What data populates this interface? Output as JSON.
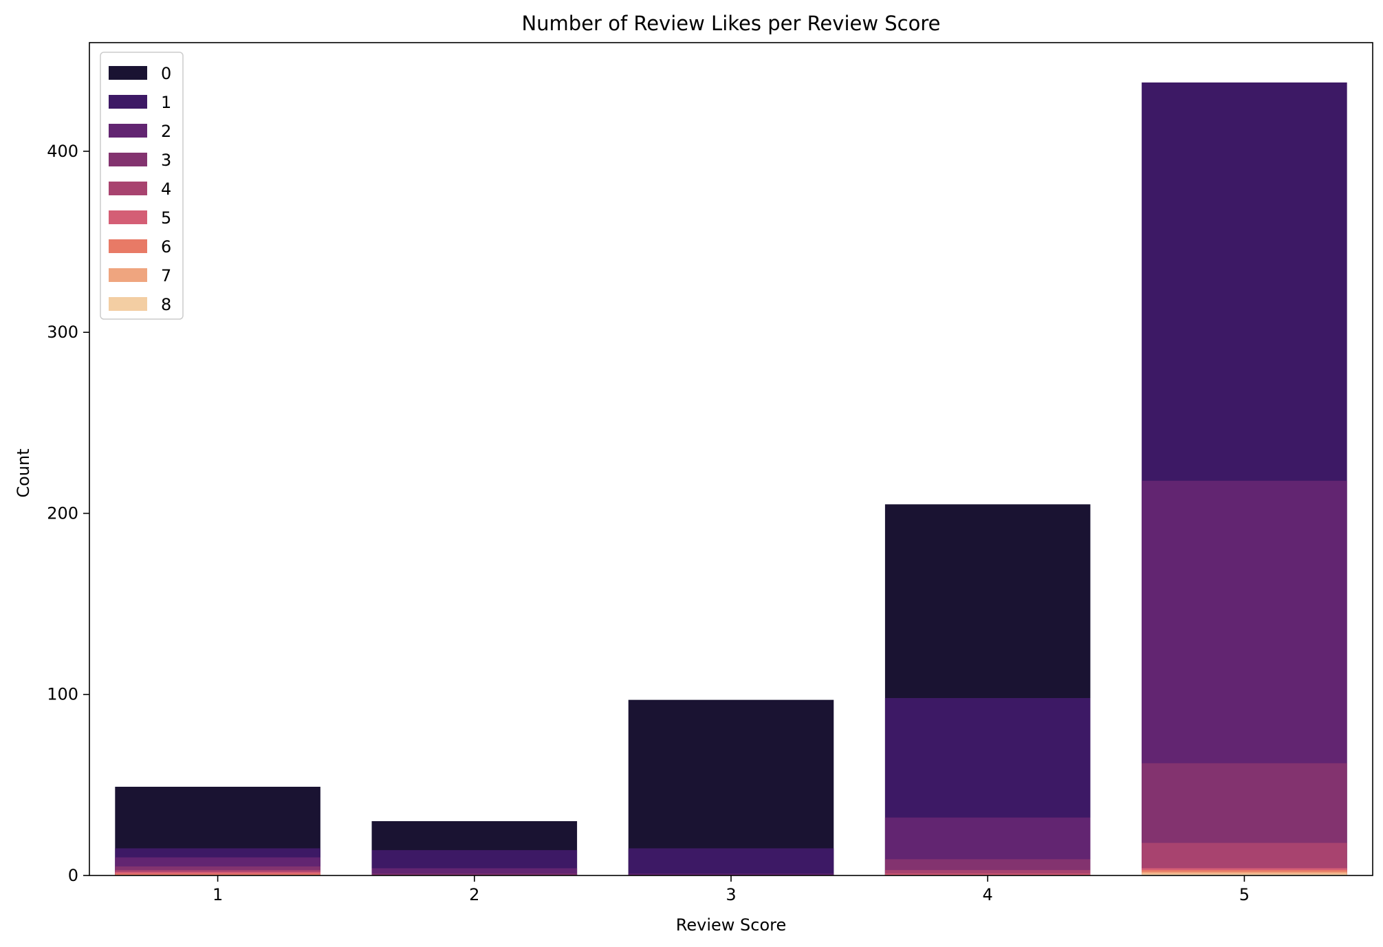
{
  "chart_data": {
    "type": "bar",
    "title": "Number of Review Likes per Review Score",
    "xlabel": "Review Score",
    "ylabel": "Count",
    "categories": [
      "1",
      "2",
      "3",
      "4",
      "5"
    ],
    "ylim": [
      0,
      460
    ],
    "yticks": [
      0,
      100,
      200,
      300,
      400
    ],
    "legend_position": "top-left",
    "grid": false,
    "overlaid": true,
    "series": [
      {
        "name": "0",
        "color": "#1a1332",
        "values": [
          49,
          30,
          97,
          205,
          0
        ]
      },
      {
        "name": "1",
        "color": "#3d1965",
        "values": [
          15,
          14,
          15,
          98,
          438
        ]
      },
      {
        "name": "2",
        "color": "#622571",
        "values": [
          10,
          4,
          1,
          32,
          218
        ]
      },
      {
        "name": "3",
        "color": "#83336f",
        "values": [
          5,
          1,
          0,
          9,
          62
        ]
      },
      {
        "name": "4",
        "color": "#a8436f",
        "values": [
          3,
          0,
          0,
          3,
          18
        ]
      },
      {
        "name": "5",
        "color": "#d45e75",
        "values": [
          2,
          0,
          0,
          1,
          4
        ]
      },
      {
        "name": "6",
        "color": "#e87a66",
        "values": [
          1,
          0,
          0,
          0,
          3
        ]
      },
      {
        "name": "7",
        "color": "#efa57f",
        "values": [
          0,
          0,
          0,
          0,
          2
        ]
      },
      {
        "name": "8",
        "color": "#f3cea3",
        "values": [
          0,
          0,
          0,
          0,
          1
        ]
      }
    ]
  }
}
